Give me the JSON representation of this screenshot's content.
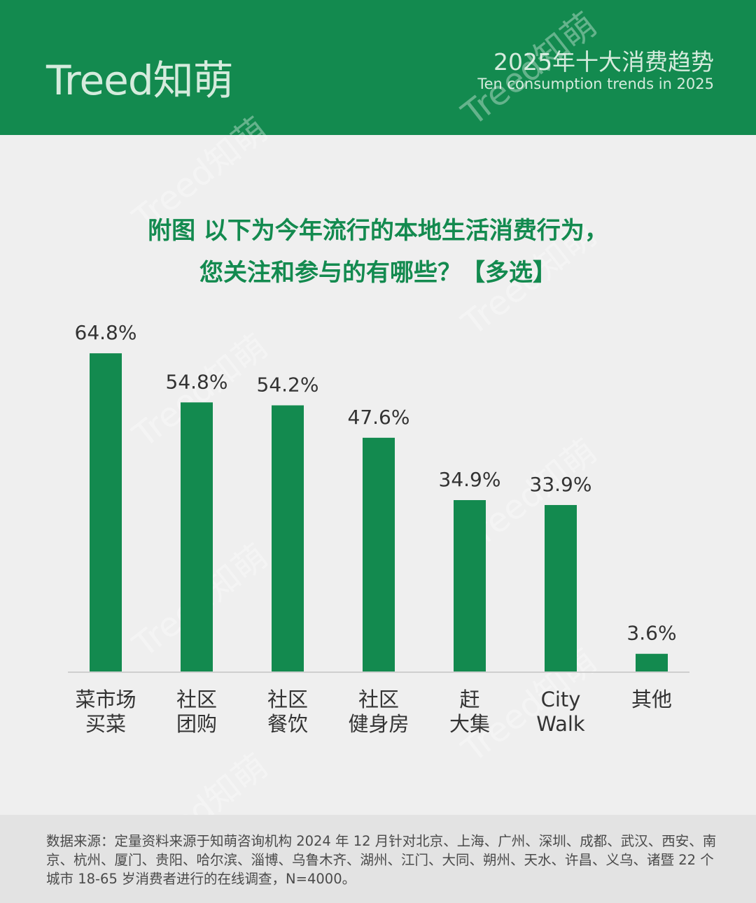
{
  "header": {
    "logo": "Treed知萌",
    "title": "2025年十大消费趋势",
    "subtitle": "Ten consumption trends in 2025",
    "bg_color": "#138a4f"
  },
  "question": {
    "line1": "附图 以下为今年流行的本地生活消费行为，",
    "line2": "您关注和参与的有哪些？【多选】"
  },
  "chart_data": {
    "type": "bar",
    "categories": [
      [
        "菜市场",
        "买菜"
      ],
      [
        "社区",
        "团购"
      ],
      [
        "社区",
        "餐饮"
      ],
      [
        "社区",
        "健身房"
      ],
      [
        "赶",
        "大集"
      ],
      [
        "City",
        "Walk"
      ],
      [
        "其他"
      ]
    ],
    "values": [
      64.8,
      54.8,
      54.2,
      47.6,
      34.9,
      33.9,
      3.6
    ],
    "value_labels": [
      "64.8%",
      "54.8%",
      "54.2%",
      "47.6%",
      "34.9%",
      "33.9%",
      "3.6%"
    ],
    "unit": "%",
    "bar_color": "#138a4f",
    "grid": false
  },
  "footer": {
    "text": "数据来源：定量资料来源于知萌咨询机构 2024 年 12 月针对北京、上海、广州、深圳、成都、武汉、西安、南京、杭州、厦门、贵阳、哈尔滨、淄博、乌鲁木齐、湖州、江门、大同、朔州、天水、许昌、义乌、诸暨 22 个城市 18-65 岁消费者进行的在线调查，N=4000。"
  }
}
